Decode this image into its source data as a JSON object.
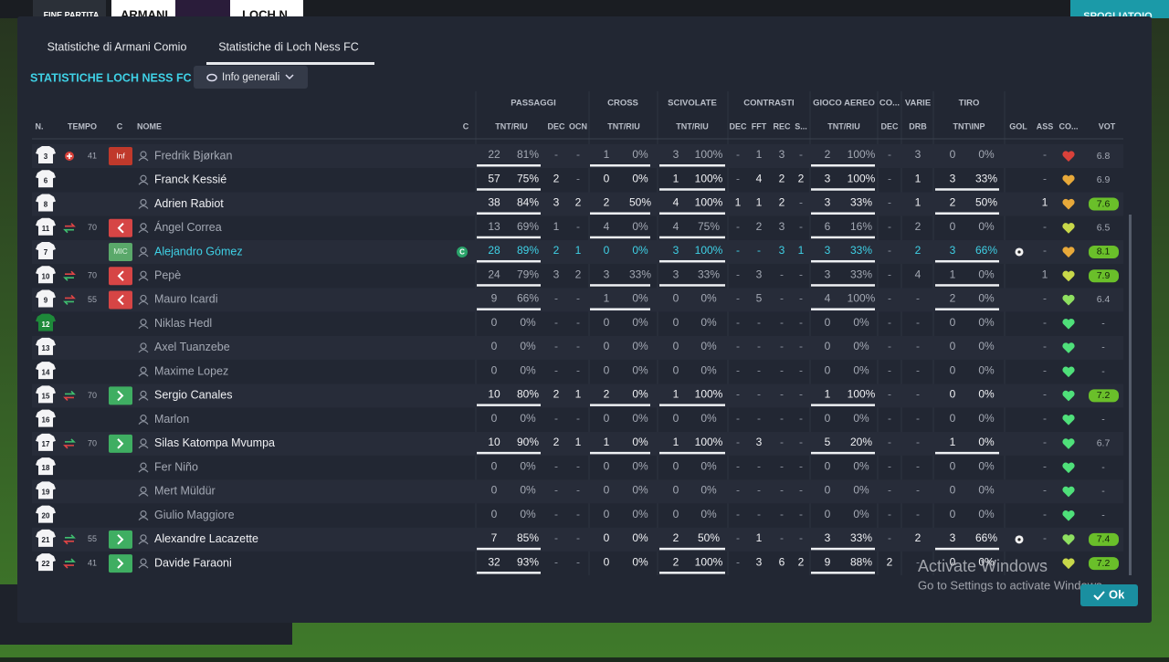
{
  "header": {
    "status": "FINE PARTITA",
    "home": "ARMANI",
    "away": "LOCH N",
    "button": "SPOGLIATOIO"
  },
  "tabs": [
    "Statistiche di Armani Comio",
    "Statistiche di Loch Ness FC"
  ],
  "section_title": "STATISTICHE LOCH NESS FC",
  "dropdown": "Info generali",
  "table": {
    "groups": [
      "PASSAGGI",
      "CROSS",
      "SCIVOLATE",
      "CONTRASTI",
      "GIOCO AEREO",
      "CO...",
      "VARIE",
      "TIRO"
    ],
    "columns": [
      "N.",
      "TEMPO",
      "C",
      "NOME",
      "C",
      "TNT/RIU",
      "DEC",
      "OCN",
      "TNT/RIU",
      "TNT/RIU",
      "DEC",
      "FFT",
      "REC",
      "S...",
      "TNT/RIU",
      "DEC",
      "DRB",
      "TNT\\INP",
      "GOL",
      "ASS",
      "CO...",
      "VOT"
    ],
    "rows": [
      {
        "number": 3,
        "minute": "41",
        "event": "injury",
        "badge": "Inf",
        "name": "Fredrik Bjørkan",
        "cells": [
          "22",
          "81%",
          "-",
          "-",
          "1",
          "0%",
          "3",
          "100%",
          "-",
          "1",
          "3",
          "-",
          "2",
          "100%",
          "-",
          "3",
          "0",
          "0%",
          "-"
        ],
        "heart": "#d9413a",
        "rating": "6.8"
      },
      {
        "number": 6,
        "name": "Franck Kessié",
        "cells": [
          "57",
          "75%",
          "2",
          "-",
          "0",
          "0%",
          "1",
          "100%",
          "-",
          "4",
          "2",
          "2",
          "3",
          "100%",
          "-",
          "1",
          "3",
          "33%",
          "-"
        ],
        "heart": "#e8a93a",
        "rating": "6.9"
      },
      {
        "number": 8,
        "name": "Adrien Rabiot",
        "cells": [
          "38",
          "84%",
          "3",
          "2",
          "2",
          "50%",
          "4",
          "100%",
          "1",
          "1",
          "2",
          "-",
          "3",
          "33%",
          "-",
          "1",
          "2",
          "50%",
          "1"
        ],
        "heart": "#e8a93a",
        "rating": "7.6"
      },
      {
        "number": 11,
        "minute": "70",
        "event": "sub-out",
        "badge": "out",
        "name": "Ángel Correa",
        "cells": [
          "13",
          "69%",
          "1",
          "-",
          "4",
          "0%",
          "4",
          "75%",
          "-",
          "2",
          "3",
          "-",
          "6",
          "16%",
          "-",
          "2",
          "0",
          "0%",
          "-"
        ],
        "heart": "#c8d84a",
        "rating": "6.5"
      },
      {
        "number": 7,
        "badge": "MIC",
        "name": "Alejandro Gómez",
        "captain": "C",
        "selected": true,
        "cells": [
          "28",
          "89%",
          "2",
          "1",
          "0",
          "0%",
          "3",
          "100%",
          "-",
          "-",
          "3",
          "1",
          "3",
          "33%",
          "-",
          "2",
          "3",
          "66%",
          "-"
        ],
        "goal": true,
        "heart": "#e8a93a",
        "rating": "8.1"
      },
      {
        "number": 10,
        "minute": "70",
        "event": "sub-out",
        "badge": "out",
        "name": "Pepè",
        "cells": [
          "24",
          "79%",
          "3",
          "2",
          "3",
          "33%",
          "3",
          "33%",
          "-",
          "3",
          "-",
          "-",
          "3",
          "33%",
          "-",
          "4",
          "1",
          "0%",
          "1"
        ],
        "heart": "#c8d84a",
        "rating": "7.9"
      },
      {
        "number": 9,
        "minute": "55",
        "event": "sub-out",
        "badge": "out",
        "name": "Mauro Icardi",
        "cells": [
          "9",
          "66%",
          "-",
          "-",
          "1",
          "0%",
          "0",
          "0%",
          "-",
          "5",
          "-",
          "-",
          "4",
          "100%",
          "-",
          "-",
          "2",
          "0%",
          "-"
        ],
        "heart": "#8ee060",
        "rating": "6.4"
      },
      {
        "number": 12,
        "name": "Niklas Hedl",
        "cells": [
          "0",
          "0%",
          "-",
          "-",
          "0",
          "0%",
          "0",
          "0%",
          "-",
          "-",
          "-",
          "-",
          "0",
          "0%",
          "-",
          "-",
          "0",
          "0%",
          "-"
        ],
        "heart": "#4fe07a",
        "rating": "-"
      },
      {
        "number": 13,
        "name": "Axel Tuanzebe",
        "cells": [
          "0",
          "0%",
          "-",
          "-",
          "0",
          "0%",
          "0",
          "0%",
          "-",
          "-",
          "-",
          "-",
          "0",
          "0%",
          "-",
          "-",
          "0",
          "0%",
          "-"
        ],
        "heart": "#4fe07a",
        "rating": "-"
      },
      {
        "number": 14,
        "name": "Maxime Lopez",
        "cells": [
          "0",
          "0%",
          "-",
          "-",
          "0",
          "0%",
          "0",
          "0%",
          "-",
          "-",
          "-",
          "-",
          "0",
          "0%",
          "-",
          "-",
          "0",
          "0%",
          "-"
        ],
        "heart": "#4fe07a",
        "rating": "-"
      },
      {
        "number": 15,
        "minute": "70",
        "event": "sub-in",
        "badge": "in",
        "name": "Sergio Canales",
        "cells": [
          "10",
          "80%",
          "2",
          "1",
          "2",
          "0%",
          "1",
          "100%",
          "-",
          "-",
          "-",
          "-",
          "1",
          "100%",
          "-",
          "-",
          "0",
          "0%",
          "-"
        ],
        "heart": "#4fe07a",
        "rating": "7.2"
      },
      {
        "number": 16,
        "name": "Marlon",
        "cells": [
          "0",
          "0%",
          "-",
          "-",
          "0",
          "0%",
          "0",
          "0%",
          "-",
          "-",
          "-",
          "-",
          "0",
          "0%",
          "-",
          "-",
          "0",
          "0%",
          "-"
        ],
        "heart": "#4fe07a",
        "rating": "-"
      },
      {
        "number": 17,
        "minute": "70",
        "event": "sub-in",
        "badge": "in",
        "name": "Silas Katompa Mvumpa",
        "cells": [
          "10",
          "90%",
          "2",
          "1",
          "1",
          "0%",
          "1",
          "100%",
          "-",
          "3",
          "-",
          "-",
          "5",
          "20%",
          "-",
          "-",
          "1",
          "0%",
          "-"
        ],
        "heart": "#4fe07a",
        "rating": "6.7"
      },
      {
        "number": 18,
        "name": "Fer Niño",
        "cells": [
          "0",
          "0%",
          "-",
          "-",
          "0",
          "0%",
          "0",
          "0%",
          "-",
          "-",
          "-",
          "-",
          "0",
          "0%",
          "-",
          "-",
          "0",
          "0%",
          "-"
        ],
        "heart": "#4fe07a",
        "rating": "-"
      },
      {
        "number": 19,
        "name": "Mert Müldür",
        "cells": [
          "0",
          "0%",
          "-",
          "-",
          "0",
          "0%",
          "0",
          "0%",
          "-",
          "-",
          "-",
          "-",
          "0",
          "0%",
          "-",
          "-",
          "0",
          "0%",
          "-"
        ],
        "heart": "#4fe07a",
        "rating": "-"
      },
      {
        "number": 20,
        "name": "Giulio Maggiore",
        "cells": [
          "0",
          "0%",
          "-",
          "-",
          "0",
          "0%",
          "0",
          "0%",
          "-",
          "-",
          "-",
          "-",
          "0",
          "0%",
          "-",
          "-",
          "0",
          "0%",
          "-"
        ],
        "heart": "#4fe07a",
        "rating": "-"
      },
      {
        "number": 21,
        "minute": "55",
        "event": "sub-in",
        "badge": "in",
        "name": "Alexandre Lacazette",
        "cells": [
          "7",
          "85%",
          "-",
          "-",
          "0",
          "0%",
          "2",
          "50%",
          "-",
          "1",
          "-",
          "-",
          "3",
          "33%",
          "-",
          "2",
          "3",
          "66%",
          "-"
        ],
        "goal": true,
        "heart": "#8ee060",
        "rating": "7.4"
      },
      {
        "number": 22,
        "minute": "41",
        "event": "sub-in",
        "badge": "in",
        "name": "Davide Faraoni",
        "cells": [
          "32",
          "93%",
          "-",
          "-",
          "0",
          "0%",
          "2",
          "100%",
          "-",
          "3",
          "6",
          "2",
          "9",
          "88%",
          "2",
          "-",
          "0",
          "0%",
          "-"
        ],
        "heart": "#c8d84a",
        "rating": "7.2"
      }
    ]
  },
  "watermark": {
    "title": "Activate Windows",
    "subtitle": "Go to Settings to activate Windows."
  },
  "ok_button": "Ok"
}
